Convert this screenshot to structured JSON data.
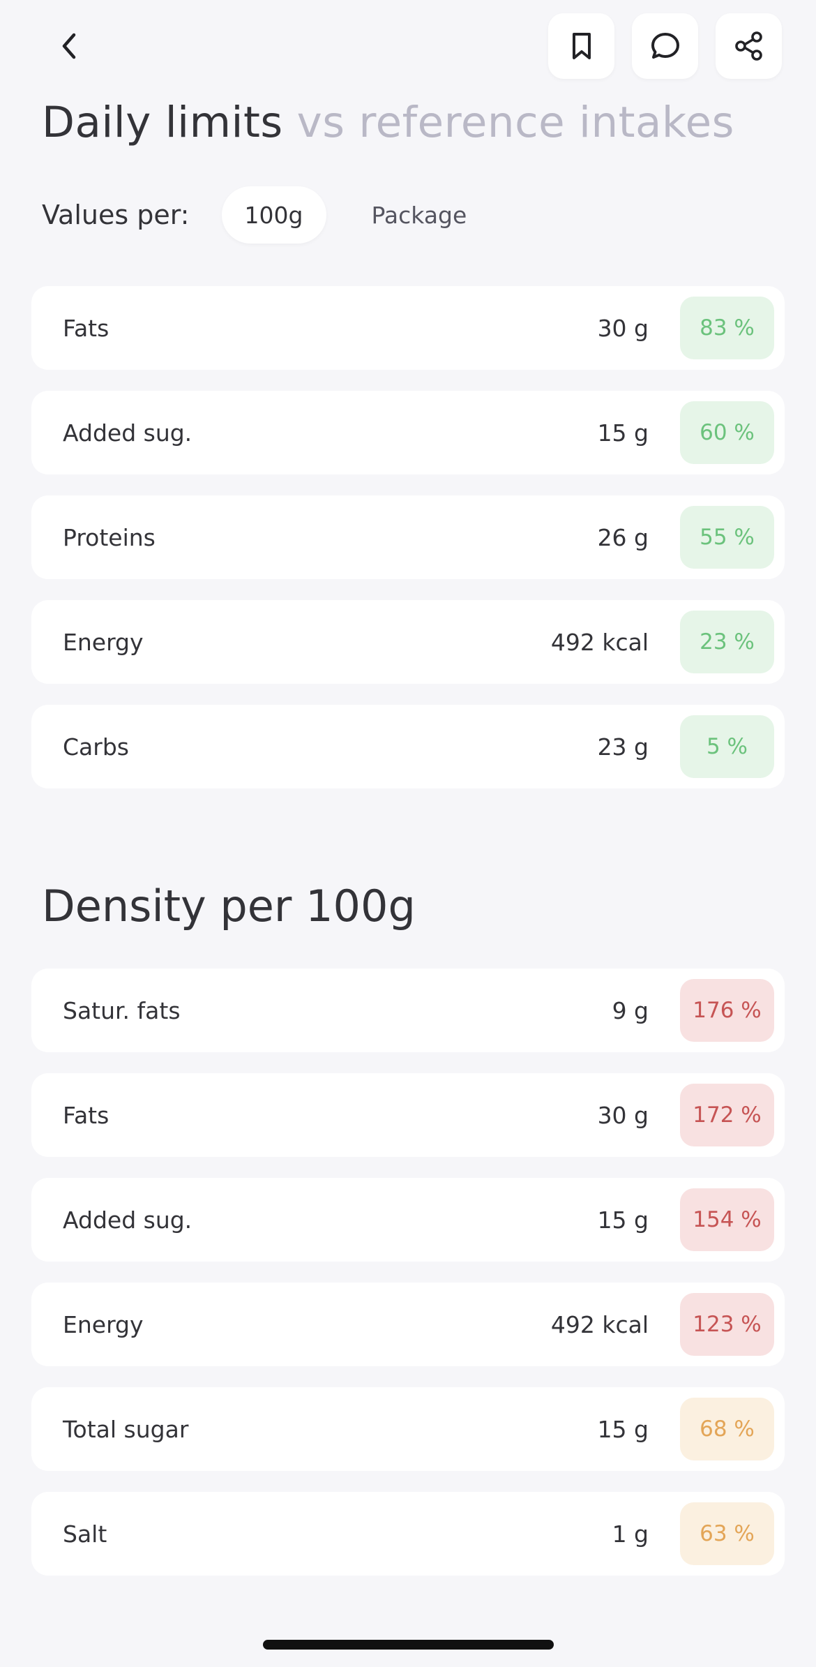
{
  "header": {
    "back_icon": "chevron-left-icon",
    "actions": [
      {
        "name": "bookmark",
        "icon": "bookmark-icon"
      },
      {
        "name": "comment",
        "icon": "chat-bubble-icon"
      },
      {
        "name": "share",
        "icon": "share-icon"
      }
    ]
  },
  "daily_limits": {
    "title_main": "Daily limits",
    "title_muted": "vs reference intakes",
    "values_per_label": "Values per:",
    "options": [
      "100g",
      "Package"
    ],
    "selected": "100g",
    "rows": [
      {
        "label": "Fats",
        "value": "30 g",
        "percent": "83 %",
        "level": "green"
      },
      {
        "label": "Added sug.",
        "value": "15 g",
        "percent": "60 %",
        "level": "green"
      },
      {
        "label": "Proteins",
        "value": "26 g",
        "percent": "55 %",
        "level": "green"
      },
      {
        "label": "Energy",
        "value": "492 kcal",
        "percent": "23 %",
        "level": "green"
      },
      {
        "label": "Carbs",
        "value": "23 g",
        "percent": "5 %",
        "level": "green"
      }
    ]
  },
  "density": {
    "title": "Density per 100g",
    "rows": [
      {
        "label": "Satur. fats",
        "value": "9 g",
        "percent": "176 %",
        "level": "red"
      },
      {
        "label": "Fats",
        "value": "30 g",
        "percent": "172 %",
        "level": "red"
      },
      {
        "label": "Added sug.",
        "value": "15 g",
        "percent": "154 %",
        "level": "red"
      },
      {
        "label": "Energy",
        "value": "492 kcal",
        "percent": "123 %",
        "level": "red"
      },
      {
        "label": "Total sugar",
        "value": "15 g",
        "percent": "68 %",
        "level": "orange"
      },
      {
        "label": "Salt",
        "value": "1 g",
        "percent": "63 %",
        "level": "orange"
      }
    ]
  },
  "colors": {
    "background": "#f6f6f9",
    "green_text": "#6bc27c",
    "green_bg": "#e6f5e8",
    "red_text": "#c65454",
    "red_bg": "#f8e1e1",
    "orange_text": "#e3a557",
    "orange_bg": "#fbf0e0",
    "muted_title": "#b9b8c6"
  }
}
